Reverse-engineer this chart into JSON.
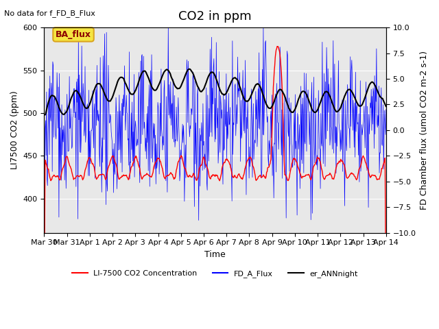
{
  "title": "CO2 in ppm",
  "top_left_text": "No data for f_FD_B_Flux",
  "ba_flux_label": "BA_flux",
  "xlabel": "Time",
  "ylabel_left": "LI7500 CO2 (ppm)",
  "ylabel_right": "FD Chamber flux (umol CO2 m-2 s-1)",
  "ylim_left": [
    360,
    600
  ],
  "ylim_right": [
    -10,
    10
  ],
  "xtick_labels": [
    "Mar 30",
    "Mar 31",
    "Apr 1",
    "Apr 2",
    "Apr 3",
    "Apr 4",
    "Apr 5",
    "Apr 6",
    "Apr 7",
    "Apr 8",
    "Apr 9",
    "Apr 10",
    "Apr 11",
    "Apr 12",
    "Apr 13",
    "Apr 14"
  ],
  "xtick_positions": [
    0,
    1,
    2,
    3,
    4,
    5,
    6,
    7,
    8,
    9,
    10,
    11,
    12,
    13,
    14,
    15
  ],
  "legend_entries": [
    "LI-7500 CO2 Concentration",
    "FD_A_Flux",
    "er_ANNnight"
  ],
  "bg_color": "#e8e8e8",
  "fig_bg_color": "#ffffff",
  "title_fontsize": 13,
  "label_fontsize": 9,
  "tick_fontsize": 8
}
